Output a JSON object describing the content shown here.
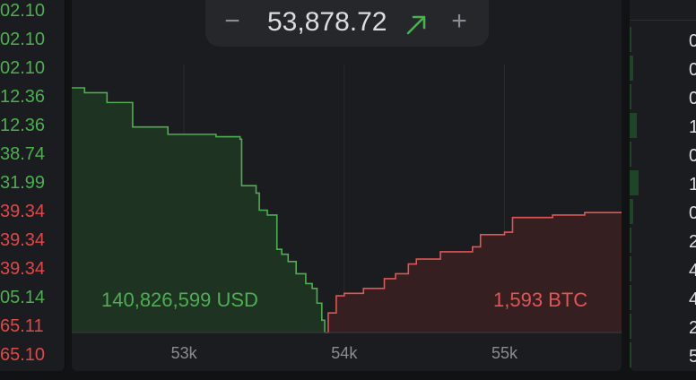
{
  "left_prices": [
    "02.10",
    "02.10",
    "02.10",
    "12.36",
    "12.36",
    "38.74",
    "31.99",
    "39.34",
    "39.34",
    "39.34",
    "05.14",
    "65.11",
    "65.10"
  ],
  "left_colors": [
    "#4caf50",
    "#4caf50",
    "#4caf50",
    "#4caf50",
    "#4caf50",
    "#4caf50",
    "#4caf50",
    "#e04848",
    "#e04848",
    "#e04848",
    "#4caf50",
    "#e04848",
    "#e04848"
  ],
  "mid": {
    "price": "53,878.72",
    "minus": "−",
    "plus": "+",
    "trend": "up"
  },
  "depth": {
    "bid_total": "140,826,599 USD",
    "ask_total": "1,593 BTC",
    "x_ticks": [
      "53k",
      "54k",
      "55k"
    ],
    "bids": [
      [
        52300,
        1.0
      ],
      [
        52380,
        0.98
      ],
      [
        52520,
        0.94
      ],
      [
        52680,
        0.84
      ],
      [
        52900,
        0.81
      ],
      [
        53200,
        0.8
      ],
      [
        53350,
        0.79
      ],
      [
        53360,
        0.6
      ],
      [
        53450,
        0.57
      ],
      [
        53470,
        0.5
      ],
      [
        53520,
        0.48
      ],
      [
        53580,
        0.34
      ],
      [
        53610,
        0.32
      ],
      [
        53650,
        0.29
      ],
      [
        53700,
        0.24
      ],
      [
        53760,
        0.2
      ],
      [
        53800,
        0.18
      ],
      [
        53830,
        0.12
      ],
      [
        53860,
        0.05
      ],
      [
        53878,
        0.0
      ]
    ],
    "asks": [
      [
        53880,
        0.0
      ],
      [
        53900,
        0.08
      ],
      [
        53950,
        0.15
      ],
      [
        54000,
        0.16
      ],
      [
        54120,
        0.18
      ],
      [
        54250,
        0.22
      ],
      [
        54320,
        0.24
      ],
      [
        54400,
        0.28
      ],
      [
        54450,
        0.3
      ],
      [
        54600,
        0.33
      ],
      [
        54800,
        0.35
      ],
      [
        54850,
        0.4
      ],
      [
        55000,
        0.41
      ],
      [
        55050,
        0.47
      ],
      [
        55300,
        0.48
      ],
      [
        55500,
        0.49
      ]
    ]
  },
  "right_values": [
    "0",
    "0",
    "0",
    "1",
    "0",
    "1",
    "0",
    "2",
    "4",
    "4",
    "2",
    "5"
  ],
  "right_bars": [
    0.1,
    0.2,
    0.1,
    0.4,
    0.1,
    0.5,
    0.2,
    0.1,
    0.1,
    0.1,
    0.1,
    0.1
  ]
}
